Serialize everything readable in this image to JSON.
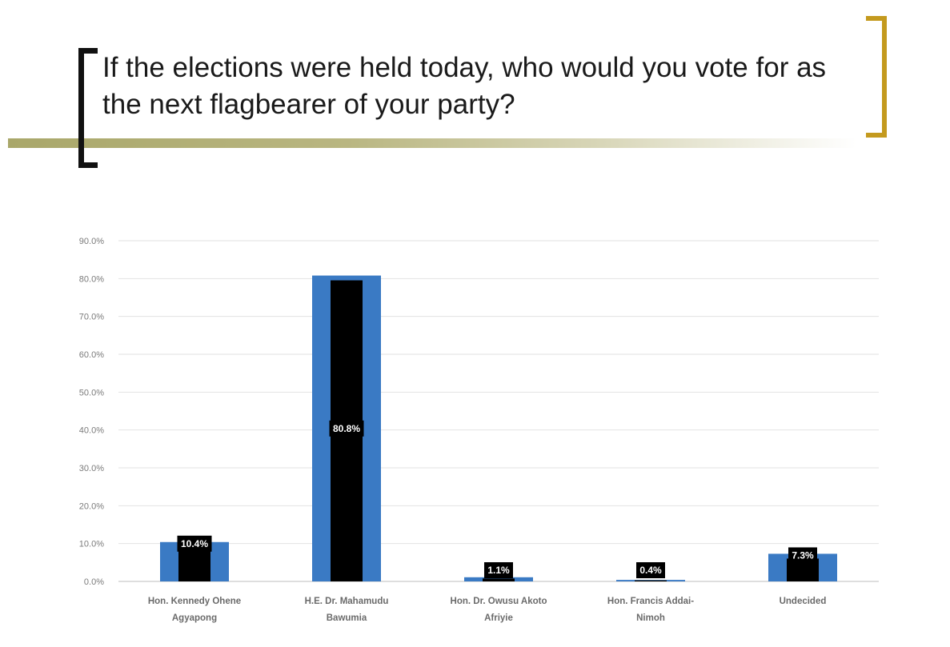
{
  "slide": {
    "title": "If the elections were held today, who would you vote for as the next flagbearer of your party?",
    "accent_colors": {
      "left_bracket": "#111111",
      "right_bracket": "#c49a1e",
      "rule": "#a9a76a"
    }
  },
  "chart_data": {
    "type": "bar",
    "title": "",
    "xlabel": "",
    "ylabel": "",
    "ylim": [
      0,
      90
    ],
    "y_ticks": [
      "0.0%",
      "10.0%",
      "20.0%",
      "30.0%",
      "40.0%",
      "50.0%",
      "60.0%",
      "70.0%",
      "80.0%",
      "90.0%"
    ],
    "grid": true,
    "legend": "none",
    "categories": [
      [
        "Hon. Kennedy Ohene",
        "Agyapong"
      ],
      [
        "H.E. Dr. Mahamudu",
        "Bawumia"
      ],
      [
        "Hon. Dr. Owusu Akoto",
        "Afriyie"
      ],
      [
        "Hon. Francis Addai-",
        "Nimoh"
      ],
      [
        "Undecided"
      ]
    ],
    "values": [
      10.4,
      80.8,
      1.1,
      0.4,
      7.3
    ],
    "data_labels": [
      "10.4%",
      "80.8%",
      "1.1%",
      "0.4%",
      "7.3%"
    ],
    "colors": {
      "bar": "#3a7ac4",
      "inner_bar": "#000000",
      "grid": "#e2e2e2",
      "axis": "#bdbdbd"
    }
  }
}
